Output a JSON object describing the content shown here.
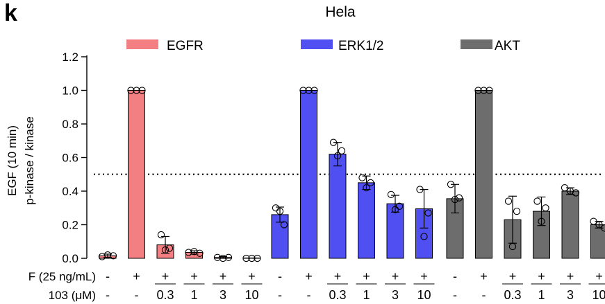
{
  "panel_letter": "k",
  "chart_data": {
    "type": "bar",
    "title": "Hela",
    "ylabel_lines": [
      "EGF (10 min)",
      "p-kinase / kinase"
    ],
    "ylim": [
      0,
      1.2
    ],
    "yticks": [
      0.0,
      0.2,
      0.4,
      0.6,
      0.8,
      1.0,
      1.2
    ],
    "ytick_labels": [
      "0.0",
      "0.2",
      "0.4",
      "0.6",
      "0.8",
      "1.0",
      "1.2"
    ],
    "reference_line": 0.5,
    "row_labels": [
      "F (25 ng/mL)",
      "103 (μM)"
    ],
    "conditions": [
      {
        "egf": "-",
        "dose": "-"
      },
      {
        "egf": "+",
        "dose": "-"
      },
      {
        "egf": "+",
        "dose": "0.3"
      },
      {
        "egf": "+",
        "dose": "1"
      },
      {
        "egf": "+",
        "dose": "3"
      },
      {
        "egf": "+",
        "dose": "10"
      }
    ],
    "series": [
      {
        "name": "EGFR",
        "color": "#f47f82",
        "values": [
          0.015,
          1.0,
          0.08,
          0.035,
          0.005,
          0.0
        ],
        "errors": [
          0.01,
          0.0,
          0.05,
          0.01,
          0.005,
          0.0
        ],
        "points": [
          [
            0.01,
            0.02,
            0.015
          ],
          [
            1.0,
            1.0,
            1.0
          ],
          [
            0.14,
            0.06,
            0.05
          ],
          [
            0.035,
            0.04,
            0.03
          ],
          [
            0.005,
            0.0,
            0.005
          ],
          [
            0.0,
            0.0,
            0.0
          ]
        ]
      },
      {
        "name": "ERK1/2",
        "color": "#4f4ff2",
        "values": [
          0.26,
          1.0,
          0.62,
          0.45,
          0.325,
          0.295
        ],
        "errors": [
          0.045,
          0.0,
          0.07,
          0.04,
          0.05,
          0.115
        ],
        "points": [
          [
            0.3,
            0.2,
            0.28
          ],
          [
            1.0,
            1.0,
            1.0
          ],
          [
            0.69,
            0.64,
            0.61
          ],
          [
            0.48,
            0.45,
            0.42
          ],
          [
            0.38,
            0.31,
            0.29
          ],
          [
            0.41,
            0.27,
            0.13
          ]
        ]
      },
      {
        "name": "AKT",
        "color": "#6d6d6d",
        "values": [
          0.355,
          1.0,
          0.23,
          0.28,
          0.4,
          0.2
        ],
        "errors": [
          0.085,
          0.0,
          0.14,
          0.085,
          0.02,
          0.02
        ],
        "points": [
          [
            0.44,
            0.36,
            0.35
          ],
          [
            1.0,
            1.0,
            1.0
          ],
          [
            0.34,
            0.28,
            0.07
          ],
          [
            0.34,
            0.3,
            0.22
          ],
          [
            0.42,
            0.4,
            0.39
          ],
          [
            0.22,
            0.2,
            0.18
          ]
        ]
      }
    ]
  }
}
